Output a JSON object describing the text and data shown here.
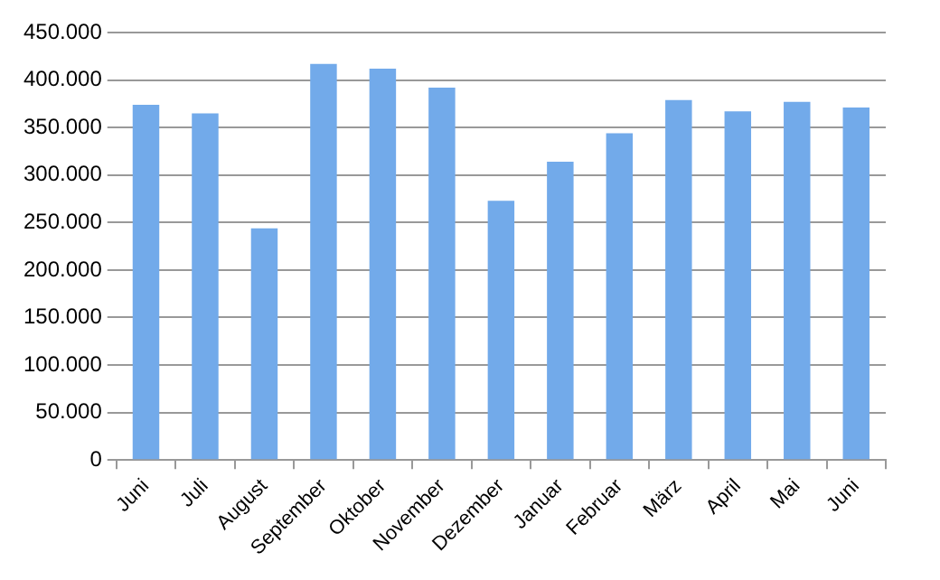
{
  "chart_data": {
    "type": "bar",
    "categories": [
      "Juni",
      "Juli",
      "August",
      "September",
      "Oktober",
      "November",
      "Dezember",
      "Januar",
      "Februar",
      "März",
      "April",
      "Mai",
      "Juni"
    ],
    "values": [
      374000,
      365000,
      244000,
      417000,
      412000,
      392000,
      273000,
      314000,
      344000,
      379000,
      367000,
      377000,
      371000
    ],
    "color": "#72aaea",
    "ylim": [
      0,
      450000
    ],
    "yticks": [
      {
        "value": 0,
        "label": "0"
      },
      {
        "value": 50000,
        "label": "50.000"
      },
      {
        "value": 100000,
        "label": "100.000"
      },
      {
        "value": 150000,
        "label": "150.000"
      },
      {
        "value": 200000,
        "label": "200.000"
      },
      {
        "value": 250000,
        "label": "250.000"
      },
      {
        "value": 300000,
        "label": "300.000"
      },
      {
        "value": 350000,
        "label": "350.000"
      },
      {
        "value": 400000,
        "label": "400.000"
      },
      {
        "value": 450000,
        "label": "450.000"
      }
    ],
    "grid": "y",
    "legend": false
  }
}
